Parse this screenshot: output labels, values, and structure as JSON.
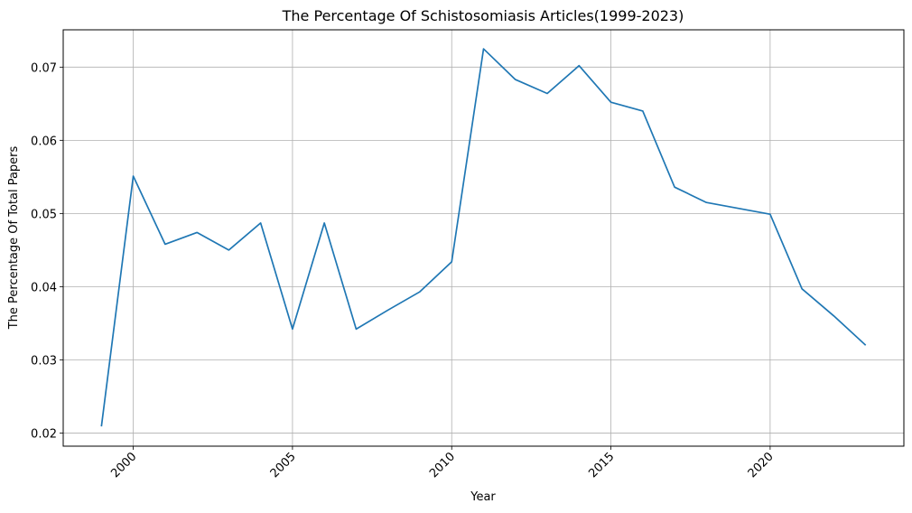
{
  "chart_data": {
    "type": "line",
    "title": "The Percentage Of Schistosomiasis Articles(1999-2023)",
    "xlabel": "Year",
    "ylabel": "The Percentage Of Total Papers",
    "xlim": [
      1997.8,
      2024.2
    ],
    "ylim": [
      0.0182,
      0.0751
    ],
    "xticks": [
      2000,
      2005,
      2010,
      2015,
      2020
    ],
    "yticks": [
      0.02,
      0.03,
      0.04,
      0.05,
      0.06,
      0.07
    ],
    "ytick_labels": [
      "0.02",
      "0.03",
      "0.04",
      "0.05",
      "0.06",
      "0.07"
    ],
    "grid": true,
    "line_color": "#1f77b4",
    "x": [
      1999,
      2000,
      2001,
      2002,
      2003,
      2004,
      2005,
      2006,
      2007,
      2008,
      2009,
      2010,
      2011,
      2012,
      2013,
      2014,
      2015,
      2016,
      2017,
      2018,
      2019,
      2020,
      2021,
      2022,
      2023
    ],
    "values": [
      0.0209,
      0.0551,
      0.0458,
      0.0474,
      0.045,
      0.0487,
      0.0342,
      0.0487,
      0.0342,
      0.0368,
      0.0393,
      0.0434,
      0.0725,
      0.0683,
      0.0664,
      0.0702,
      0.0652,
      0.064,
      0.0536,
      0.0515,
      0.0507,
      0.0499,
      0.0397,
      0.036,
      0.032
    ]
  }
}
